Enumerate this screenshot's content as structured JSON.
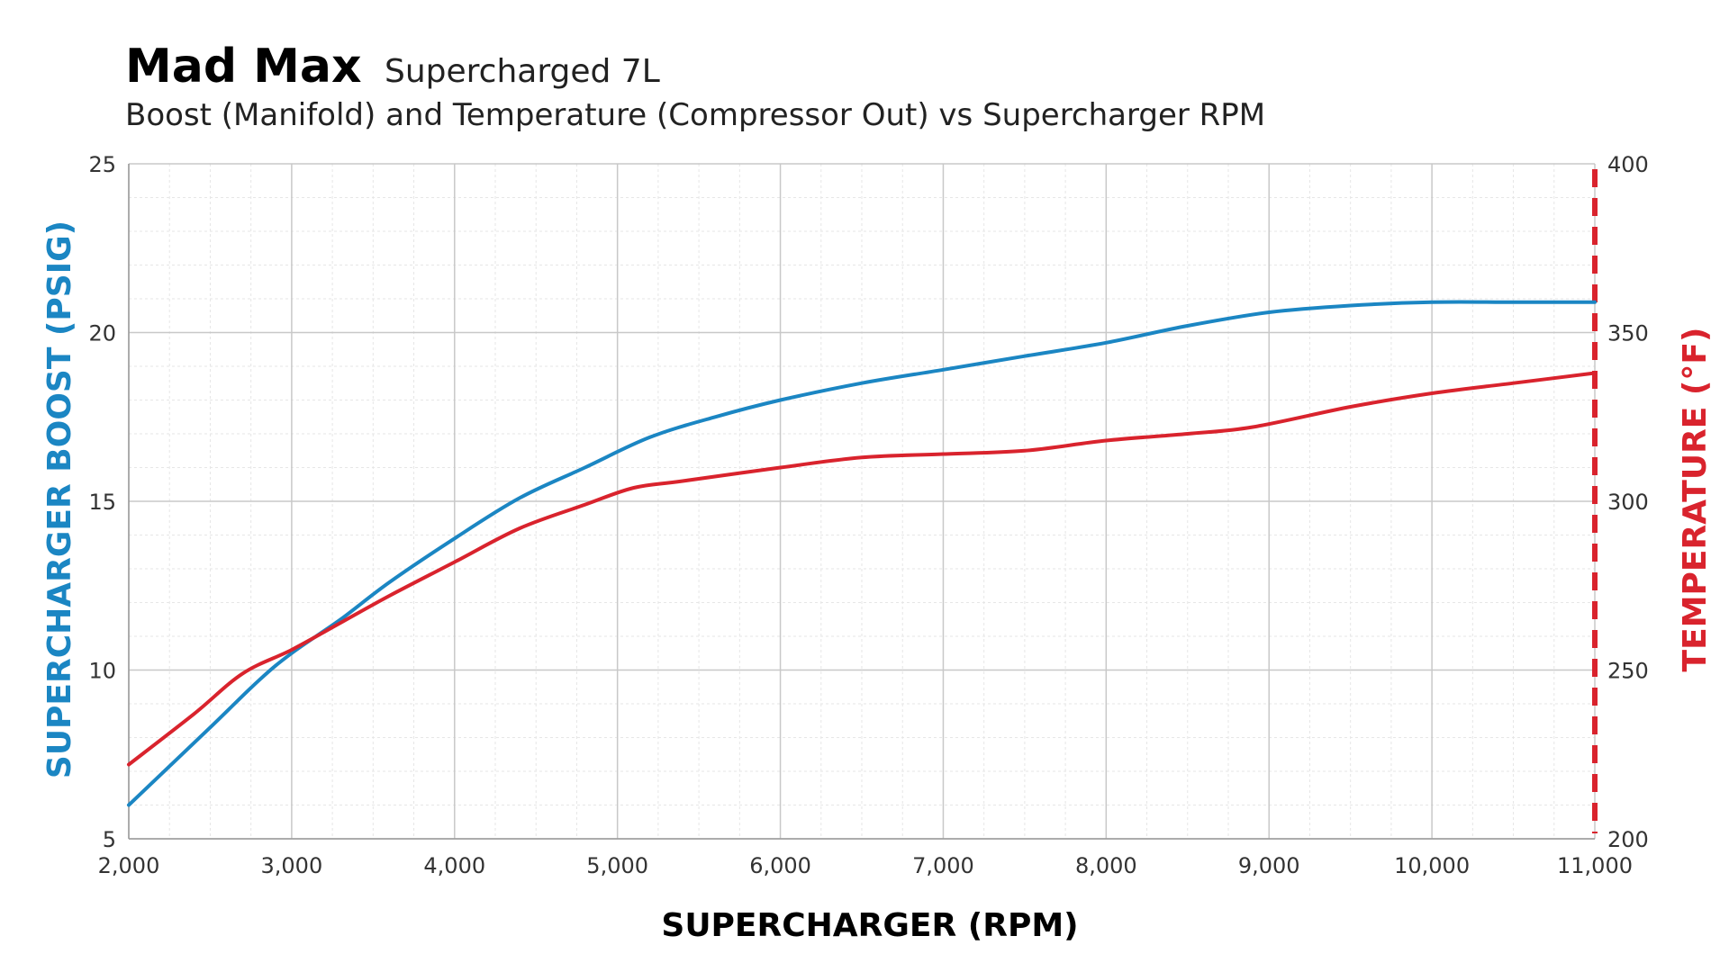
{
  "chart_data": {
    "type": "line",
    "title": "Mad Max",
    "subtitle": "Supercharged 7L",
    "subtitle2": "Boost (Manifold) and Temperature (Compressor Out) vs Supercharger RPM",
    "xlabel": "SUPERCHARGER (RPM)",
    "ylabel_left": "SUPERCHARGER BOOST (PSIG)",
    "ylabel_right": "TEMPERATURE (°F)",
    "xlim": [
      2000,
      11000
    ],
    "ylim_left": [
      5,
      25
    ],
    "ylim_right": [
      200,
      400
    ],
    "x_ticks": [
      "2,000",
      "3,000",
      "4,000",
      "5,000",
      "6,000",
      "7,000",
      "8,000",
      "9,000",
      "10,000",
      "11,000"
    ],
    "y_left_ticks": [
      "5",
      "10",
      "15",
      "20",
      "25"
    ],
    "y_right_ticks": [
      "200",
      "250",
      "300",
      "350",
      "400"
    ],
    "grid": true,
    "colors": {
      "boost": "#1b86c3",
      "temperature": "#d9232d",
      "axis_left": "#1b86c3",
      "axis_right": "#d9232d"
    },
    "series": [
      {
        "key": "boost",
        "axis": "left",
        "x": [
          2000,
          2500,
          2800,
          3000,
          3300,
          3600,
          4000,
          4400,
          4800,
          5200,
          5600,
          6000,
          6500,
          7000,
          7500,
          8000,
          8500,
          9000,
          9500,
          10000,
          10500,
          11000
        ],
        "values": [
          6.0,
          8.3,
          9.7,
          10.5,
          11.5,
          12.6,
          13.9,
          15.1,
          16.0,
          16.9,
          17.5,
          18.0,
          18.5,
          18.9,
          19.3,
          19.7,
          20.2,
          20.6,
          20.8,
          20.9,
          20.9,
          20.9
        ]
      },
      {
        "key": "temperature",
        "axis": "right",
        "x": [
          2000,
          2400,
          2700,
          3000,
          3300,
          3600,
          4000,
          4400,
          4800,
          5100,
          5400,
          6000,
          6500,
          7000,
          7500,
          8000,
          8500,
          8900,
          9500,
          10000,
          10500,
          11000
        ],
        "values": [
          222,
          237,
          249,
          256,
          264,
          272,
          282,
          292,
          299,
          304,
          306,
          310,
          313,
          314,
          315,
          318,
          320,
          322,
          328,
          332,
          335,
          338
        ]
      }
    ]
  }
}
